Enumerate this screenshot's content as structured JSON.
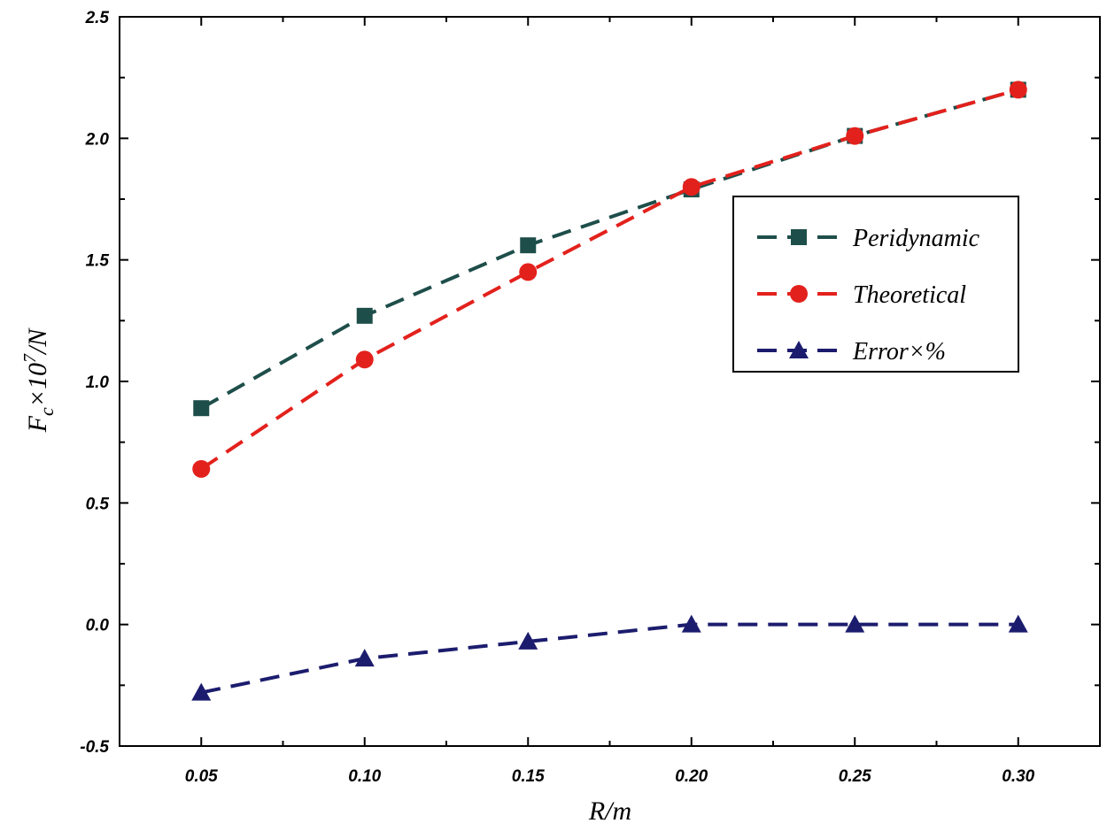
{
  "chart_data": {
    "type": "line",
    "title": "",
    "xlabel": "R/m",
    "ylabel": {
      "base": "Fc",
      "sub": "c",
      "main": "F",
      "rest": "×10",
      "sup": "7",
      "unit": "/N"
    },
    "x": [
      0.05,
      0.1,
      0.15,
      0.2,
      0.25,
      0.3
    ],
    "x_tick_labels": [
      "0.05",
      "0.10",
      "0.15",
      "0.20",
      "0.25",
      "0.30"
    ],
    "y_tick_labels": [
      "-0.5",
      "0.0",
      "0.5",
      "1.0",
      "1.5",
      "2.0",
      "2.5"
    ],
    "y_ticks": [
      -0.5,
      0.0,
      0.5,
      1.0,
      1.5,
      2.0,
      2.5
    ],
    "xlim": [
      0.025,
      0.325
    ],
    "ylim": [
      -0.5,
      2.5
    ],
    "legend_position": "upper-right",
    "series": [
      {
        "name": "Peridynamic",
        "color": "#1e4e4a",
        "marker": "square",
        "values": [
          0.89,
          1.27,
          1.56,
          1.79,
          2.01,
          2.2
        ]
      },
      {
        "name": "Theoretical",
        "color": "#e3211c",
        "marker": "circle",
        "values": [
          0.64,
          1.09,
          1.45,
          1.8,
          2.01,
          2.2
        ]
      },
      {
        "name": "Error×%",
        "color": "#1c1c6e",
        "marker": "triangle",
        "values": [
          -0.28,
          -0.14,
          -0.07,
          0.0,
          0.0,
          0.0
        ]
      }
    ]
  }
}
